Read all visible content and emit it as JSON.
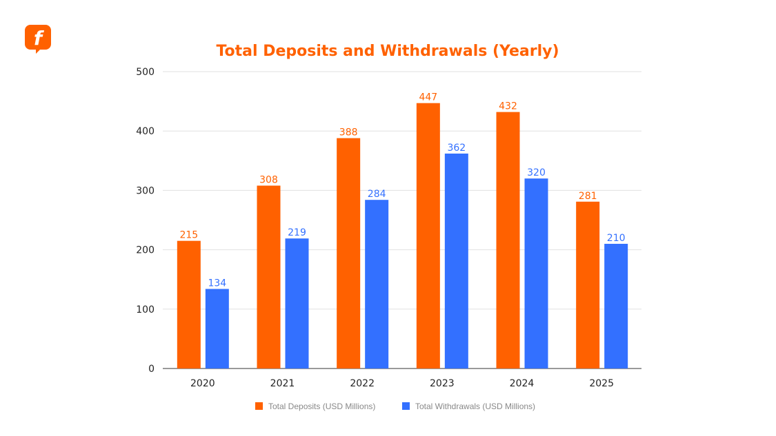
{
  "logo_text": "f",
  "chart_data": {
    "type": "bar",
    "title": "Total Deposits and Withdrawals (Yearly)",
    "categories": [
      "2020",
      "2021",
      "2022",
      "2023",
      "2024",
      "2025"
    ],
    "series": [
      {
        "name": "Total Deposits (USD Millions)",
        "color": "#FF6100",
        "values": [
          215,
          308,
          388,
          447,
          432,
          281
        ]
      },
      {
        "name": "Total Withdrawals (USD Millions)",
        "color": "#3370FF",
        "values": [
          134,
          219,
          284,
          362,
          320,
          210
        ]
      }
    ],
    "ylim": [
      0,
      500
    ],
    "yticks": [
      0,
      100,
      200,
      300,
      400,
      500
    ],
    "grid": true,
    "legend": "bottom",
    "data_labels": true
  }
}
